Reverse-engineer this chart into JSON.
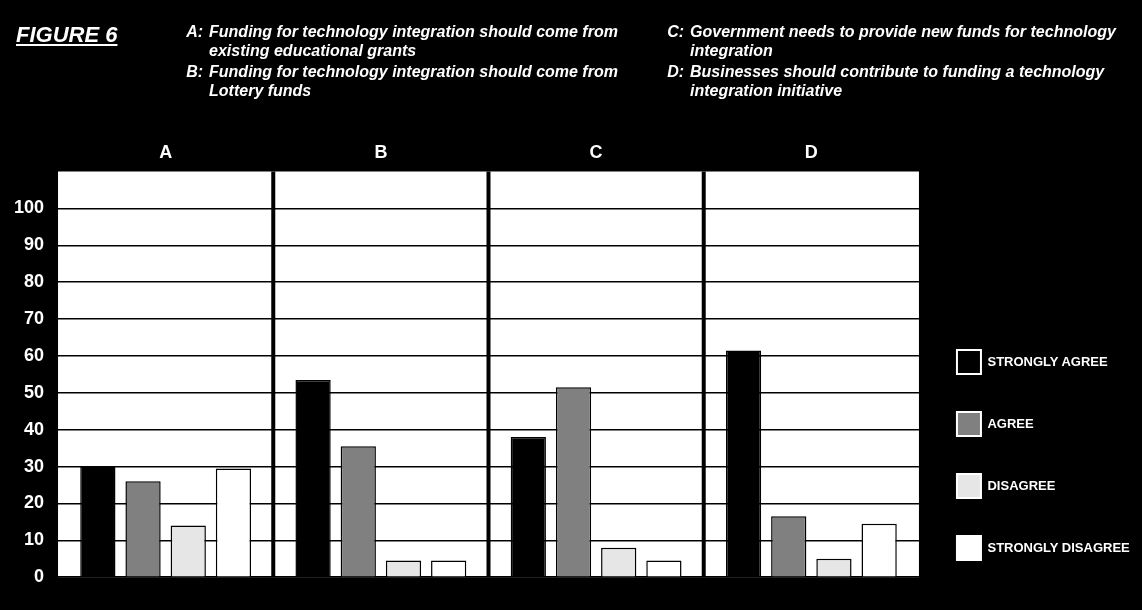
{
  "chart_data": {
    "type": "bar",
    "categories": [
      "A",
      "B",
      "C",
      "D"
    ],
    "ylim": [
      0,
      110
    ],
    "yticks": [
      0,
      10,
      20,
      30,
      40,
      50,
      60,
      70,
      80,
      90,
      100
    ],
    "grid": "y",
    "legend": "right",
    "annotations": [
      "FIGURE 6",
      "A:  Funding for technology integration should come from existing educational grants",
      "B:  Funding for technology integration should come from Lottery funds",
      "C:  Government needs to provide new funds for technology integration",
      "D:  Businesses should contribute to funding a technology integration initiative"
    ],
    "series": [
      {
        "name": "STRONGLY AGREE",
        "color": "#000000",
        "values": [
          30,
          53.5,
          38,
          61.5
        ]
      },
      {
        "name": "AGREE",
        "color": "#808080",
        "values": [
          26,
          35.5,
          51.5,
          16.5
        ]
      },
      {
        "name": "DISAGREE",
        "color": "#e6e6e6",
        "values": [
          14,
          4.5,
          8,
          5
        ]
      },
      {
        "name": "STRONGLY DISAGREE",
        "color": "#ffffff",
        "values": [
          29.5,
          4.5,
          4.5,
          14.5
        ]
      }
    ]
  }
}
